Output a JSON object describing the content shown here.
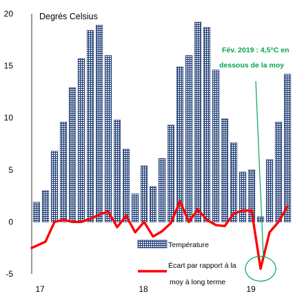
{
  "chart_data": {
    "type": "bar",
    "ylabel": "Degrés Celsius",
    "ylim": [
      -5,
      20
    ],
    "yticks": [
      "20",
      "15",
      "10",
      "5",
      "0",
      "-5"
    ],
    "xtick_labels": [
      "17",
      "18",
      "19"
    ],
    "grid": false,
    "legend_position": "bottom-center",
    "annotation": {
      "text_line1": "Fév. 2019 : 4,5°C en",
      "text_line2": "dessous de la moy"
    },
    "colors": {
      "bar_fill": "#1f3a6e",
      "bar_pattern": "#dde6f4",
      "line": "#ff0000",
      "annotation_text": "#00a651",
      "ellipse": "#00a651"
    },
    "x": [
      "2017-01",
      "2017-02",
      "2017-03",
      "2017-04",
      "2017-05",
      "2017-06",
      "2017-07",
      "2017-08",
      "2017-09",
      "2017-10",
      "2017-11",
      "2017-12",
      "2018-01",
      "2018-02",
      "2018-03",
      "2018-04",
      "2018-05",
      "2018-06",
      "2018-07",
      "2018-08",
      "2018-09",
      "2018-10",
      "2018-11",
      "2018-12",
      "2019-01",
      "2019-02",
      "2019-03",
      "2019-04",
      "2019-05"
    ],
    "series": [
      {
        "name": "Température",
        "type": "bar",
        "values": [
          1.9,
          3.0,
          6.8,
          9.6,
          12.9,
          15.7,
          18.4,
          18.9,
          16.0,
          9.8,
          7.0,
          2.7,
          5.4,
          3.4,
          6.1,
          9.3,
          14.9,
          16.0,
          19.2,
          18.7,
          14.6,
          9.9,
          7.6,
          4.8,
          5.0,
          0.5,
          6.0,
          9.6,
          14.2
        ]
      },
      {
        "name": "Écart par rapport à la moy à long terme",
        "type": "line",
        "values": [
          -2.5,
          -1.9,
          0.0,
          0.2,
          0.0,
          0.0,
          0.3,
          0.7,
          1.0,
          -0.5,
          0.6,
          -1.0,
          0.0,
          -1.4,
          -0.9,
          -0.1,
          2.0,
          0.0,
          1.2,
          0.2,
          -0.3,
          -0.4,
          0.8,
          1.1,
          1.1,
          -4.5,
          -1.0,
          0.0,
          1.5
        ]
      }
    ],
    "legend": [
      {
        "label": "Température"
      },
      {
        "label_line1": "Écart par rapport à la",
        "label_line2": "moy à long terme"
      }
    ]
  }
}
